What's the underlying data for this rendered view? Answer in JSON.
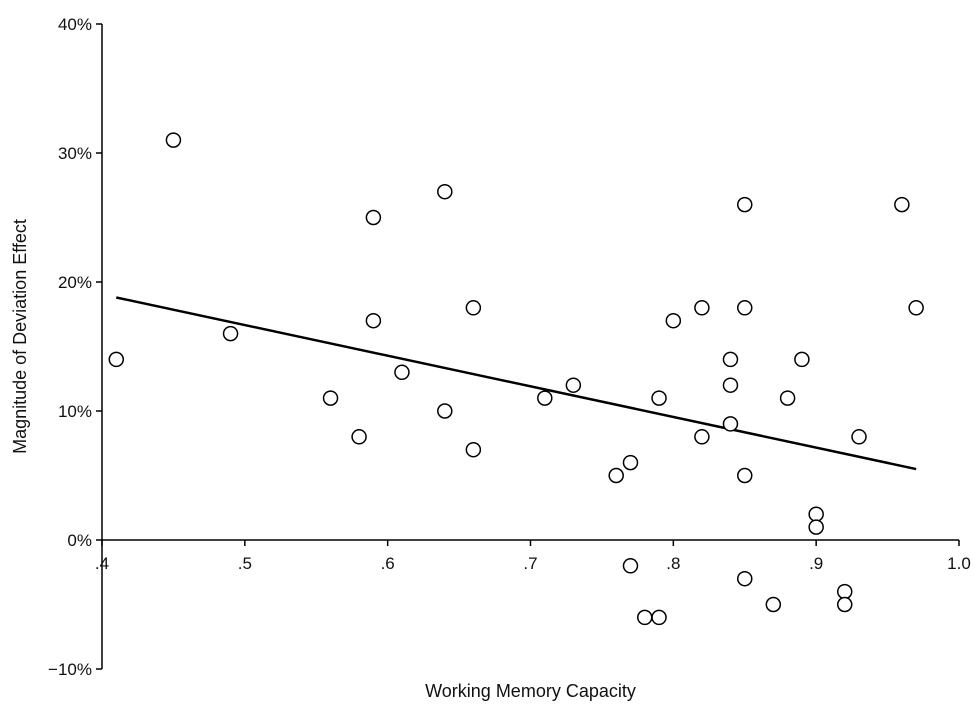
{
  "chart_data": {
    "type": "scatter",
    "title": "",
    "xlabel": "Working Memory Capacity",
    "ylabel": "Magnitude of Deviation Effect",
    "xlim": [
      0.4,
      1.0
    ],
    "ylim": [
      -10,
      40
    ],
    "x_ticks": [
      0.4,
      0.5,
      0.6,
      0.7,
      0.8,
      0.9,
      1.0
    ],
    "x_tick_labels": [
      ".4",
      ".5",
      ".6",
      ".7",
      ".8",
      ".9",
      "1.0"
    ],
    "y_ticks": [
      -10,
      0,
      10,
      20,
      30,
      40
    ],
    "y_tick_labels": [
      "−10%",
      "0%",
      "10%",
      "20%",
      "30%",
      "40%"
    ],
    "grid": false,
    "marker": "open-circle",
    "colors": {
      "marker": "#000000",
      "line": "#000000",
      "axis": "#000000"
    },
    "series": [
      {
        "points": [
          {
            "x": 0.41,
            "y": 14
          },
          {
            "x": 0.45,
            "y": 31
          },
          {
            "x": 0.49,
            "y": 16
          },
          {
            "x": 0.56,
            "y": 11
          },
          {
            "x": 0.58,
            "y": 8
          },
          {
            "x": 0.59,
            "y": 25
          },
          {
            "x": 0.59,
            "y": 17
          },
          {
            "x": 0.61,
            "y": 13
          },
          {
            "x": 0.64,
            "y": 27
          },
          {
            "x": 0.64,
            "y": 10
          },
          {
            "x": 0.66,
            "y": 18
          },
          {
            "x": 0.66,
            "y": 7
          },
          {
            "x": 0.71,
            "y": 11
          },
          {
            "x": 0.73,
            "y": 12
          },
          {
            "x": 0.76,
            "y": 5
          },
          {
            "x": 0.77,
            "y": 6
          },
          {
            "x": 0.77,
            "y": -2
          },
          {
            "x": 0.78,
            "y": -6
          },
          {
            "x": 0.79,
            "y": -6
          },
          {
            "x": 0.79,
            "y": 11
          },
          {
            "x": 0.8,
            "y": 17
          },
          {
            "x": 0.82,
            "y": 18
          },
          {
            "x": 0.82,
            "y": 8
          },
          {
            "x": 0.84,
            "y": 14
          },
          {
            "x": 0.84,
            "y": 12
          },
          {
            "x": 0.84,
            "y": 9
          },
          {
            "x": 0.85,
            "y": 26
          },
          {
            "x": 0.85,
            "y": 18
          },
          {
            "x": 0.85,
            "y": 5
          },
          {
            "x": 0.85,
            "y": -3
          },
          {
            "x": 0.87,
            "y": -5
          },
          {
            "x": 0.88,
            "y": 11
          },
          {
            "x": 0.89,
            "y": 14
          },
          {
            "x": 0.9,
            "y": 2
          },
          {
            "x": 0.9,
            "y": 1
          },
          {
            "x": 0.92,
            "y": -4
          },
          {
            "x": 0.92,
            "y": -5
          },
          {
            "x": 0.93,
            "y": 8
          },
          {
            "x": 0.96,
            "y": 26
          },
          {
            "x": 0.97,
            "y": 18
          }
        ]
      }
    ],
    "trendline": {
      "type": "linear",
      "x": [
        0.41,
        0.97
      ],
      "y": [
        18.8,
        5.5
      ]
    }
  }
}
